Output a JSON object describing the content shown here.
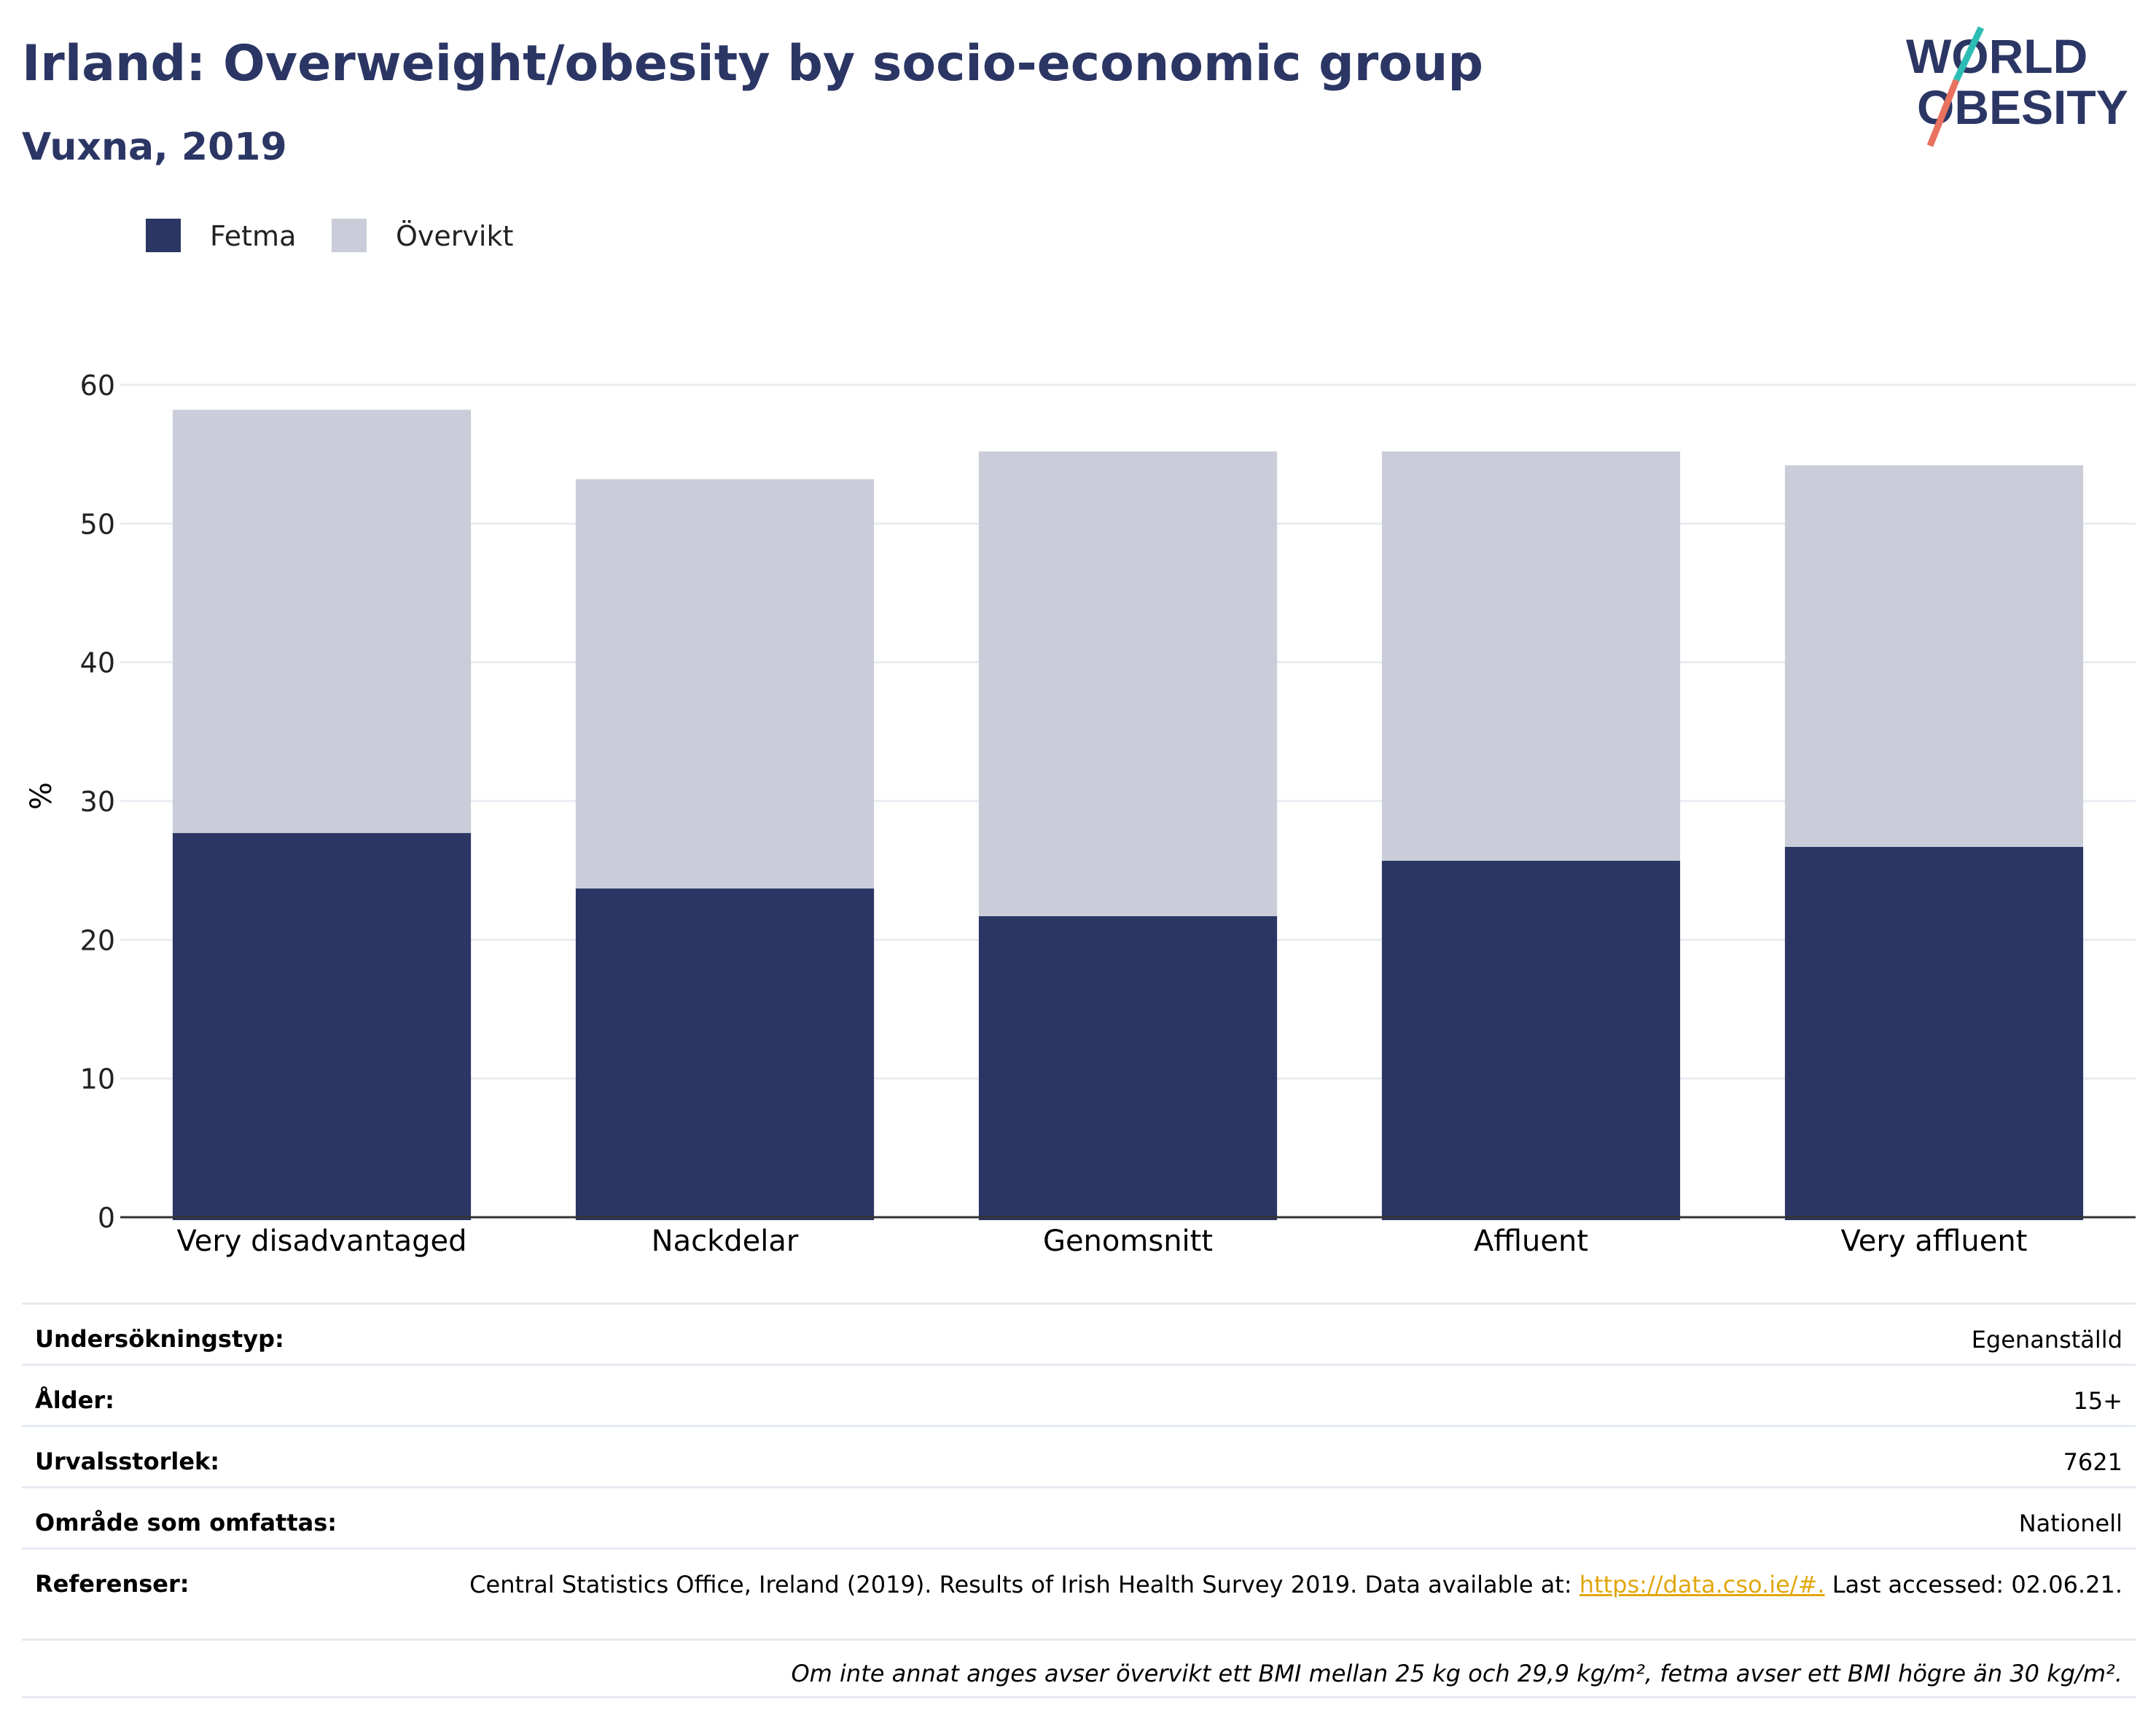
{
  "header": {
    "title": "Irland: Overweight/obesity by socio-economic group",
    "subtitle": "Vuxna, 2019"
  },
  "logo": {
    "line1": "WORLD",
    "line2": "OBESITY",
    "colors": {
      "text": "#2b3664",
      "slash_top": "#2ebdb5",
      "slash_bottom": "#e8715f"
    }
  },
  "colors": {
    "fetma": "#2b3664",
    "overvikt": "#cacdd9",
    "grid": "#e9ecf1",
    "axis": "#333333",
    "link": "#e2a70f"
  },
  "chart_data": {
    "type": "bar",
    "stacked": true,
    "categories": [
      "Very disadvantaged",
      "Nackdelar",
      "Genomsnitt",
      "Affluent",
      "Very affluent"
    ],
    "series": [
      {
        "name": "Fetma",
        "values": [
          27.7,
          23.7,
          21.7,
          25.7,
          26.7
        ]
      },
      {
        "name": "Övervikt",
        "values": [
          30.5,
          29.5,
          33.5,
          29.5,
          27.5
        ]
      }
    ],
    "totals": [
      58.2,
      53.2,
      55.2,
      55.2,
      54.2
    ],
    "ylabel": "%",
    "ylim": [
      0,
      60
    ],
    "yticks": [
      "0",
      "10",
      "20",
      "30",
      "40",
      "50",
      "60"
    ],
    "grid": true,
    "legend_position": "top-left"
  },
  "meta": {
    "rows": [
      {
        "label": "Undersökningstyp:",
        "value": "Egenanställd"
      },
      {
        "label": "Ålder:",
        "value": "15+"
      },
      {
        "label": "Urvalsstorlek:",
        "value": "7621"
      },
      {
        "label": "Område som omfattas:",
        "value": "Nationell"
      }
    ],
    "references": {
      "label": "Referenser:",
      "text_before": "Central Statistics Office, Ireland (2019). Results of Irish Health Survey 2019. Data available at: ",
      "link": "https://data.cso.ie/#.",
      "text_after": " Last accessed: 02.06.21."
    },
    "footnote": "Om inte annat anges avser övervikt ett BMI mellan 25 kg och 29,9 kg/m², fetma avser ett BMI högre än 30 kg/m²."
  }
}
